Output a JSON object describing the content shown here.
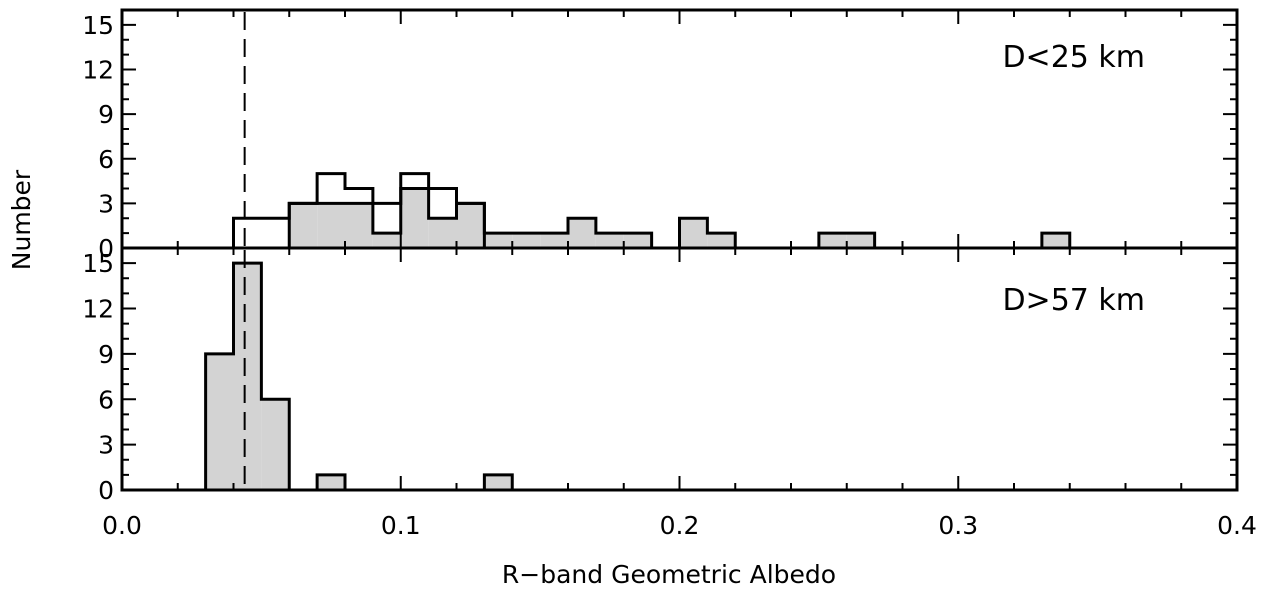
{
  "chart_data": [
    {
      "type": "histogram",
      "panel": "top",
      "annotation": "D<25 km",
      "ylabel": "Number",
      "xlim": [
        0.0,
        0.4
      ],
      "ylim": [
        0,
        16
      ],
      "yticks": [
        0,
        3,
        6,
        9,
        12,
        15
      ],
      "bin_width": 0.01,
      "reference_line_x": 0.044,
      "series": [
        {
          "style": "outline",
          "bins": [
            {
              "x0": 0.04,
              "x1": 0.05,
              "count": 2
            },
            {
              "x0": 0.05,
              "x1": 0.06,
              "count": 2
            },
            {
              "x0": 0.06,
              "x1": 0.07,
              "count": 3
            },
            {
              "x0": 0.07,
              "x1": 0.08,
              "count": 5
            },
            {
              "x0": 0.08,
              "x1": 0.09,
              "count": 4
            },
            {
              "x0": 0.09,
              "x1": 0.1,
              "count": 3
            },
            {
              "x0": 0.1,
              "x1": 0.11,
              "count": 5
            },
            {
              "x0": 0.11,
              "x1": 0.12,
              "count": 4
            },
            {
              "x0": 0.12,
              "x1": 0.13,
              "count": 3
            }
          ]
        },
        {
          "style": "filled",
          "color": "#d3d3d3",
          "bins": [
            {
              "x0": 0.06,
              "x1": 0.07,
              "count": 3
            },
            {
              "x0": 0.07,
              "x1": 0.08,
              "count": 3
            },
            {
              "x0": 0.08,
              "x1": 0.09,
              "count": 3
            },
            {
              "x0": 0.09,
              "x1": 0.1,
              "count": 1
            },
            {
              "x0": 0.1,
              "x1": 0.11,
              "count": 4
            },
            {
              "x0": 0.11,
              "x1": 0.12,
              "count": 2
            },
            {
              "x0": 0.12,
              "x1": 0.13,
              "count": 3
            },
            {
              "x0": 0.13,
              "x1": 0.14,
              "count": 1
            },
            {
              "x0": 0.14,
              "x1": 0.15,
              "count": 1
            },
            {
              "x0": 0.15,
              "x1": 0.16,
              "count": 1
            },
            {
              "x0": 0.16,
              "x1": 0.17,
              "count": 2
            },
            {
              "x0": 0.17,
              "x1": 0.18,
              "count": 1
            },
            {
              "x0": 0.18,
              "x1": 0.19,
              "count": 1
            },
            {
              "x0": 0.2,
              "x1": 0.21,
              "count": 2
            },
            {
              "x0": 0.21,
              "x1": 0.22,
              "count": 1
            },
            {
              "x0": 0.25,
              "x1": 0.26,
              "count": 1
            },
            {
              "x0": 0.26,
              "x1": 0.27,
              "count": 1
            },
            {
              "x0": 0.33,
              "x1": 0.34,
              "count": 1
            }
          ]
        }
      ]
    },
    {
      "type": "histogram",
      "panel": "bottom",
      "annotation": "D>57 km",
      "xlabel": "R−band Geometric Albedo",
      "xlim": [
        0.0,
        0.4
      ],
      "ylim": [
        0,
        16
      ],
      "xticks": [
        "0.0",
        "0.1",
        "0.2",
        "0.3",
        "0.4"
      ],
      "yticks": [
        0,
        3,
        6,
        9,
        12,
        15
      ],
      "bin_width": 0.01,
      "reference_line_x": 0.044,
      "series": [
        {
          "style": "filled",
          "color": "#d3d3d3",
          "bins": [
            {
              "x0": 0.03,
              "x1": 0.04,
              "count": 9
            },
            {
              "x0": 0.04,
              "x1": 0.05,
              "count": 15
            },
            {
              "x0": 0.05,
              "x1": 0.06,
              "count": 6
            },
            {
              "x0": 0.07,
              "x1": 0.08,
              "count": 1
            },
            {
              "x0": 0.13,
              "x1": 0.14,
              "count": 1
            }
          ]
        }
      ]
    }
  ]
}
